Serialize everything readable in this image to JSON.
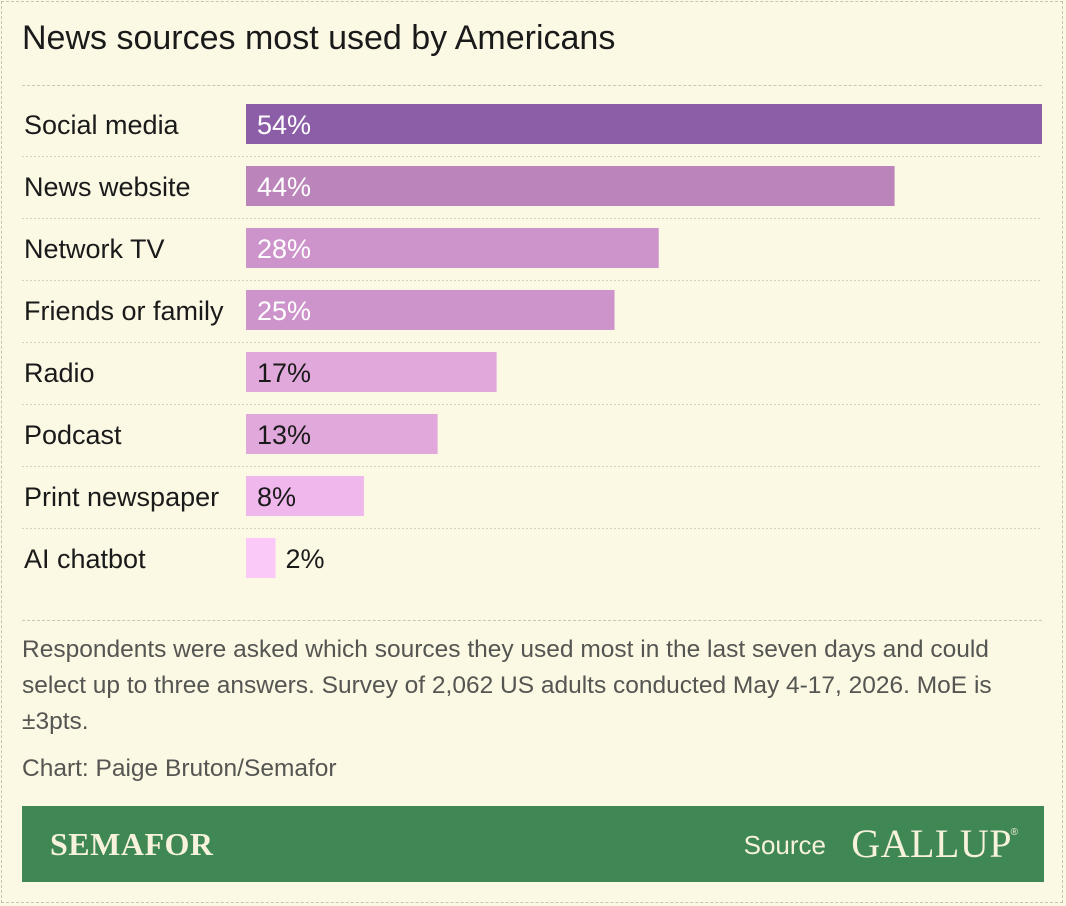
{
  "title": "News sources most used by Americans",
  "chart_data": {
    "type": "bar",
    "orientation": "horizontal",
    "categories": [
      "Social media",
      "News website",
      "Network TV",
      "Friends or family",
      "Radio",
      "Podcast",
      "Print newspaper",
      "AI chatbot"
    ],
    "values": [
      54,
      44,
      28,
      25,
      17,
      13,
      8,
      2
    ],
    "value_labels": [
      "54%",
      "44%",
      "28%",
      "25%",
      "17%",
      "13%",
      "8%",
      "2%"
    ],
    "xlim": [
      0,
      54
    ],
    "colors": [
      "#8d5ea8",
      "#bb85bb",
      "#cd93cb",
      "#cd93cb",
      "#e1a8dc",
      "#e1a8dc",
      "#f0b7ec",
      "#fac9f8"
    ],
    "label_colors": [
      "#ffffff",
      "#ffffff",
      "#ffffff",
      "#ffffff",
      "#1a1a1a",
      "#1a1a1a",
      "#1a1a1a",
      "#1a1a1a"
    ],
    "grid": false
  },
  "note": "Respondents were asked which sources they used most in the last seven days and could select up to three answers. Survey of 2,062 US adults conducted May 4-17, 2026. MoE is ±3pts.",
  "credit": "Chart: Paige Bruton/Semafor",
  "footer": {
    "brand": "SEMAFOR",
    "source_label": "Source",
    "source_logo": "GALLUP",
    "registered_mark": "®",
    "background": "#3f8753"
  }
}
